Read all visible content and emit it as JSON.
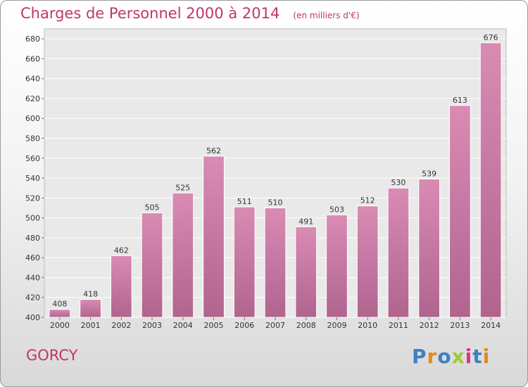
{
  "header": {
    "title": "Charges de Personnel 2000 à 2014",
    "subtitle": "(en milliers d'€)"
  },
  "footer": {
    "place": "GORCY",
    "logo": "Proxiti",
    "logo_colors": [
      "#3b82c4",
      "#e08a1e",
      "#3b82c4",
      "#9acd32",
      "#d8348a",
      "#3b82c4",
      "#e08a1e"
    ]
  },
  "chart_data": {
    "type": "bar",
    "title": "Charges de Personnel 2000 à 2014",
    "subtitle": "(en milliers d'€)",
    "categories": [
      "2000",
      "2001",
      "2002",
      "2003",
      "2004",
      "2005",
      "2006",
      "2007",
      "2008",
      "2009",
      "2010",
      "2011",
      "2012",
      "2013",
      "2014"
    ],
    "values": [
      408,
      418,
      462,
      505,
      525,
      562,
      511,
      510,
      491,
      503,
      512,
      530,
      539,
      613,
      676
    ],
    "ylim": [
      400,
      690
    ],
    "yticks": [
      400,
      420,
      440,
      460,
      480,
      500,
      520,
      540,
      560,
      580,
      600,
      620,
      640,
      660,
      680
    ],
    "grid": true,
    "bar_color": "#d98bb4",
    "bar_color_dark": "#b0648e"
  }
}
